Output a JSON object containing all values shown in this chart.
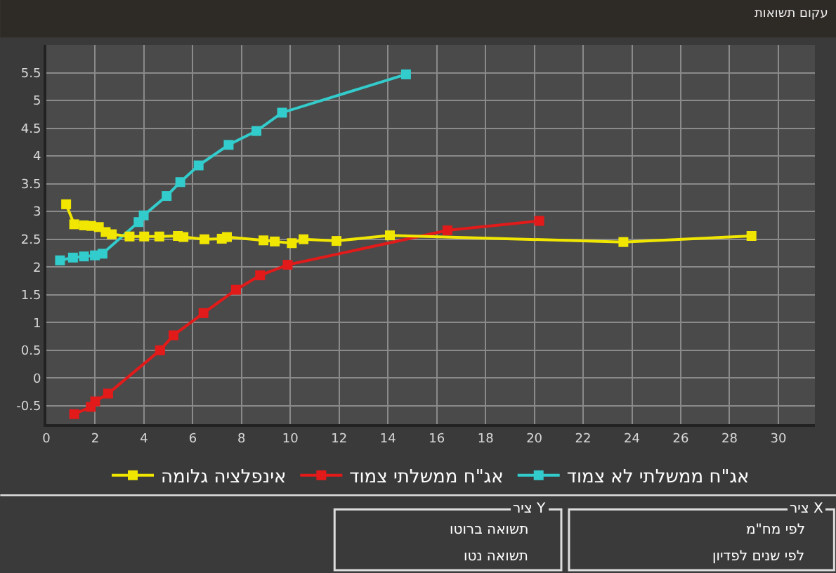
{
  "chart_data": {
    "type": "line",
    "title": "עקום תשואות",
    "xlim": [
      0,
      31.5
    ],
    "xticks": [
      0,
      2,
      4,
      6,
      8,
      10,
      12,
      14,
      16,
      18,
      20,
      22,
      24,
      26,
      28,
      30
    ],
    "ylim": [
      -0.83,
      6.0
    ],
    "yticks": [
      -0.5,
      0,
      0.5,
      1,
      1.5,
      2,
      2.5,
      3,
      3.5,
      4,
      4.5,
      5,
      5.5
    ],
    "grid": true,
    "legend": "bottom",
    "marker": "square",
    "line_style": "solid",
    "series": [
      {
        "name": "אג\"ח ממשלתי לא צמוד",
        "color": "#33cccc",
        "x": [
          0.56,
          1.09,
          1.54,
          1.99,
          2.3,
          3.78,
          3.99,
          4.93,
          5.49,
          6.24,
          7.47,
          8.61,
          9.66,
          14.74
        ],
        "values": [
          2.12,
          2.17,
          2.19,
          2.21,
          2.24,
          2.81,
          2.93,
          3.28,
          3.53,
          3.83,
          4.2,
          4.45,
          4.78,
          5.47
        ]
      },
      {
        "name": "אג\"ח ממשלתי צמוד",
        "color": "#e31a1a",
        "x": [
          1.14,
          1.82,
          2.0,
          2.53,
          4.66,
          5.21,
          6.44,
          7.77,
          8.76,
          9.89,
          16.44,
          20.2
        ],
        "values": [
          -0.65,
          -0.52,
          -0.42,
          -0.28,
          0.5,
          0.77,
          1.17,
          1.59,
          1.85,
          2.04,
          2.66,
          2.83
        ]
      },
      {
        "name": "אינפלציה גלומה",
        "color": "#f0e600",
        "x": [
          0.81,
          1.14,
          1.54,
          1.84,
          2.15,
          2.43,
          2.68,
          3.41,
          4.01,
          4.63,
          5.39,
          5.62,
          6.48,
          7.19,
          7.4,
          8.9,
          9.36,
          10.06,
          10.54,
          11.89,
          14.08,
          23.65,
          28.9
        ],
        "values": [
          3.13,
          2.77,
          2.75,
          2.74,
          2.72,
          2.63,
          2.59,
          2.55,
          2.55,
          2.55,
          2.56,
          2.54,
          2.5,
          2.51,
          2.54,
          2.48,
          2.46,
          2.43,
          2.5,
          2.47,
          2.57,
          2.45,
          2.56
        ]
      }
    ],
    "annotations": [
      "ציר X",
      "לפי מח\"מ",
      "לפי שנים לפדיון",
      "ציר Y",
      "תשואה ברוטו",
      "תשואה נטו"
    ]
  }
}
